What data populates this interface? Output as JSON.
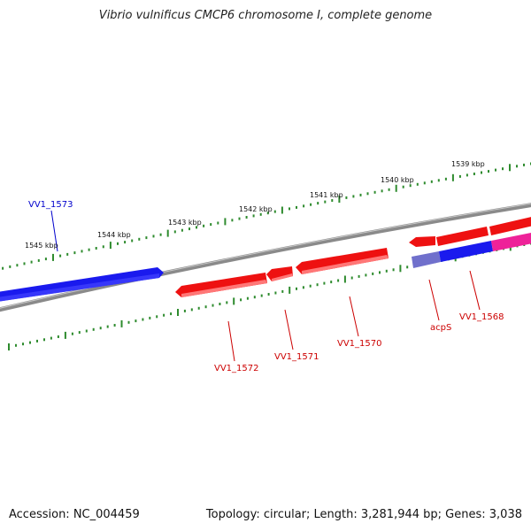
{
  "title": "Vibrio vulnificus CMCP6 chromosome I, complete genome",
  "footer": {
    "accession": "Accession: NC_004459",
    "summary": "Topology: circular; Length: 3,281,944 bp; Genes: 3,038"
  },
  "colors": {
    "backbone": "#888888",
    "tick": "#2e8b2e",
    "red_gene": "#ee1111",
    "blue_gene": "#1111ee",
    "light_blue_gene": "#7070cc",
    "pink_gene": "#ee2299",
    "red_label": "#cc0000",
    "blue_label": "#0000cc"
  },
  "kbp_ticks": [
    {
      "label": "1539 kbp"
    },
    {
      "label": "1540 kbp"
    },
    {
      "label": "1541 kbp"
    },
    {
      "label": "1542 kbp"
    },
    {
      "label": "1543 kbp"
    },
    {
      "label": "1544 kbp"
    },
    {
      "label": "1545 kbp"
    }
  ],
  "gene_labels": [
    {
      "text": "VV1_1573",
      "color": "blue"
    },
    {
      "text": "VV1_1572",
      "color": "red"
    },
    {
      "text": "VV1_1571",
      "color": "red"
    },
    {
      "text": "VV1_1570",
      "color": "red"
    },
    {
      "text": "acpS",
      "color": "red"
    },
    {
      "text": "VV1_1568",
      "color": "red"
    }
  ]
}
